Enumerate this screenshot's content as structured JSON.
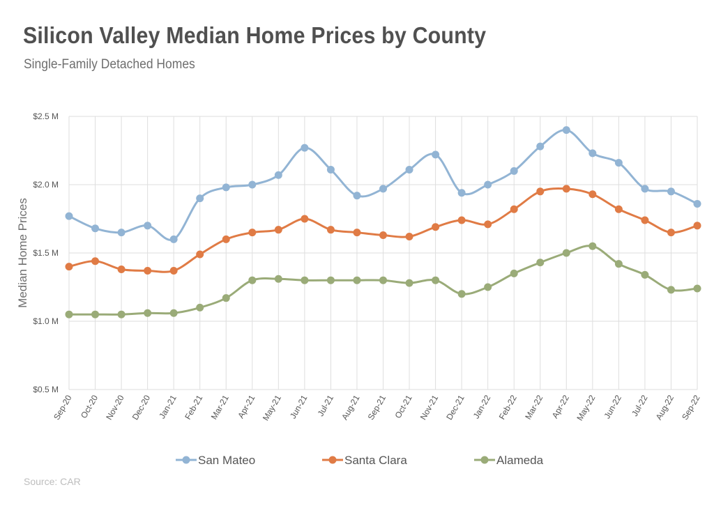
{
  "title": "Silicon Valley Median Home Prices by County",
  "subtitle": "Single-Family Detached Homes",
  "source": "Source: CAR",
  "chart_data": {
    "type": "line",
    "ylabel": "Median Home Prices",
    "xlabel": "",
    "ylim": [
      0.5,
      2.5
    ],
    "y_ticks": [
      0.5,
      1.0,
      1.5,
      2.0,
      2.5
    ],
    "y_tick_labels": [
      "$0.5 M",
      "$1.0 M",
      "$1.5 M",
      "$2.0 M",
      "$2.5 M"
    ],
    "grid": true,
    "legend_position": "bottom",
    "smooth": true,
    "categories": [
      "Sep-20",
      "Oct-20",
      "Nov-20",
      "Dec-20",
      "Jan-21",
      "Feb-21",
      "Mar-21",
      "Apr-21",
      "May-21",
      "Jun-21",
      "Jul-21",
      "Aug-21",
      "Sep-21",
      "Oct-21",
      "Nov-21",
      "Dec-21",
      "Jan-22",
      "Feb-22",
      "Mar-22",
      "Apr-22",
      "May-22",
      "Jun-22",
      "Jul-22",
      "Aug-22",
      "Sep-22"
    ],
    "series": [
      {
        "name": "San Mateo",
        "color": "#92b4d4",
        "values": [
          1.77,
          1.68,
          1.65,
          1.7,
          1.6,
          1.9,
          1.98,
          2.0,
          2.07,
          2.27,
          2.11,
          1.92,
          1.97,
          2.11,
          2.22,
          1.94,
          2.0,
          2.1,
          2.28,
          2.4,
          2.23,
          2.16,
          1.97,
          1.95,
          1.86
        ]
      },
      {
        "name": "Santa Clara",
        "color": "#e07b45",
        "values": [
          1.4,
          1.44,
          1.38,
          1.37,
          1.37,
          1.49,
          1.6,
          1.65,
          1.67,
          1.75,
          1.67,
          1.65,
          1.63,
          1.62,
          1.69,
          1.74,
          1.71,
          1.82,
          1.95,
          1.97,
          1.93,
          1.82,
          1.74,
          1.65,
          1.7
        ]
      },
      {
        "name": "Alameda",
        "color": "#9aab78",
        "values": [
          1.05,
          1.05,
          1.05,
          1.06,
          1.06,
          1.1,
          1.17,
          1.3,
          1.31,
          1.3,
          1.3,
          1.3,
          1.3,
          1.28,
          1.3,
          1.2,
          1.25,
          1.35,
          1.43,
          1.5,
          1.55,
          1.42,
          1.34,
          1.23,
          1.24
        ]
      }
    ]
  }
}
